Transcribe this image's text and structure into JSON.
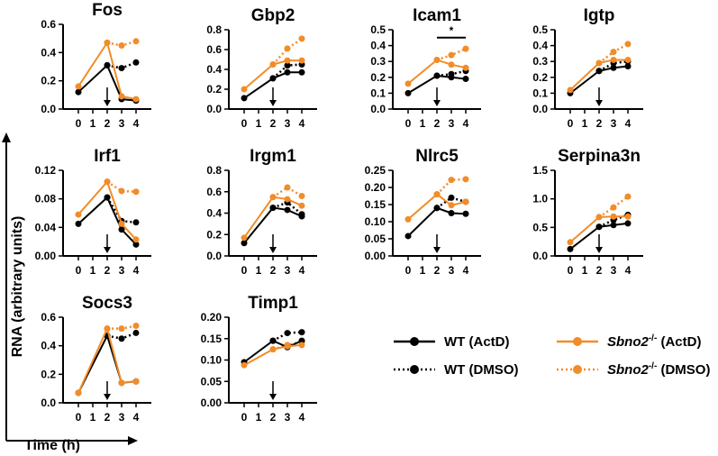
{
  "colors": {
    "wt": "#000000",
    "sbno2": "#F28C28"
  },
  "axis_labels": {
    "y": "RNA (arbitrary units)",
    "x": "Time (h)"
  },
  "legend": [
    {
      "text": "WT (ActD)",
      "style": "solid",
      "series": "wt"
    },
    {
      "italic": "Sbno2",
      "sup": "-/-",
      "text": " (ActD)",
      "style": "solid",
      "series": "sbno2"
    },
    {
      "text": "WT (DMSO)",
      "style": "dotted",
      "series": "wt"
    },
    {
      "italic": "Sbno2",
      "sup": "-/-",
      "text": " (DMSO)",
      "style": "dotted",
      "series": "sbno2"
    }
  ],
  "chart_data": [
    {
      "type": "line",
      "title": "Fos",
      "xlabel": "",
      "ylabel": "RNA (arbitrary units)",
      "x": [
        0,
        1,
        2,
        3,
        4
      ],
      "xticks": [
        "0",
        "1",
        "2",
        "3",
        "4"
      ],
      "ylim": [
        0,
        0.6
      ],
      "yticks": [
        "0.0",
        "0.2",
        "0.4",
        "0.6"
      ],
      "arrow_at": 2,
      "series": [
        {
          "name": "WT (ActD)",
          "x": [
            0,
            2,
            3,
            4
          ],
          "values": [
            0.12,
            0.31,
            0.07,
            0.06
          ]
        },
        {
          "name": "Sbno2-/- (ActD)",
          "x": [
            0,
            2,
            3,
            4
          ],
          "values": [
            0.16,
            0.47,
            0.09,
            0.07
          ]
        },
        {
          "name": "WT (DMSO)",
          "x": [
            2,
            3,
            4
          ],
          "values": [
            0.31,
            0.29,
            0.33
          ]
        },
        {
          "name": "Sbno2-/- (DMSO)",
          "x": [
            2,
            3,
            4
          ],
          "values": [
            0.47,
            0.45,
            0.48
          ]
        }
      ]
    },
    {
      "type": "line",
      "title": "Gbp2",
      "xlabel": "",
      "ylabel": "",
      "x": [
        0,
        1,
        2,
        3,
        4
      ],
      "xticks": [
        "0",
        "1",
        "2",
        "3",
        "4"
      ],
      "ylim": [
        0,
        0.8
      ],
      "yticks": [
        "0.0",
        "0.2",
        "0.4",
        "0.6",
        "0.8"
      ],
      "arrow_at": 2,
      "series": [
        {
          "name": "WT (ActD)",
          "x": [
            0,
            2,
            3,
            4
          ],
          "values": [
            0.11,
            0.31,
            0.37,
            0.37
          ]
        },
        {
          "name": "Sbno2-/- (ActD)",
          "x": [
            0,
            2,
            3,
            4
          ],
          "values": [
            0.2,
            0.45,
            0.49,
            0.49
          ]
        },
        {
          "name": "WT (DMSO)",
          "x": [
            2,
            3,
            4
          ],
          "values": [
            0.31,
            0.44,
            0.45
          ]
        },
        {
          "name": "Sbno2-/- (DMSO)",
          "x": [
            2,
            3,
            4
          ],
          "values": [
            0.45,
            0.61,
            0.71
          ]
        }
      ]
    },
    {
      "type": "line",
      "title": "Icam1",
      "xlabel": "",
      "ylabel": "",
      "x": [
        0,
        1,
        2,
        3,
        4
      ],
      "xticks": [
        "0",
        "1",
        "2",
        "3",
        "4"
      ],
      "ylim": [
        0,
        0.5
      ],
      "yticks": [
        "0.0",
        "0.1",
        "0.2",
        "0.3",
        "0.4",
        "0.5"
      ],
      "arrow_at": 2,
      "significance": {
        "from": 2,
        "to": 4,
        "y": 0.45,
        "label": "*"
      },
      "series": [
        {
          "name": "WT (ActD)",
          "x": [
            0,
            2,
            3,
            4
          ],
          "values": [
            0.1,
            0.21,
            0.2,
            0.19
          ]
        },
        {
          "name": "Sbno2-/- (ActD)",
          "x": [
            0,
            2,
            3,
            4
          ],
          "values": [
            0.16,
            0.31,
            0.28,
            0.26
          ]
        },
        {
          "name": "WT (DMSO)",
          "x": [
            2,
            3,
            4
          ],
          "values": [
            0.21,
            0.22,
            0.24
          ]
        },
        {
          "name": "Sbno2-/- (DMSO)",
          "x": [
            2,
            3,
            4
          ],
          "values": [
            0.31,
            0.34,
            0.38
          ]
        }
      ]
    },
    {
      "type": "line",
      "title": "Igtp",
      "xlabel": "",
      "ylabel": "",
      "x": [
        0,
        1,
        2,
        3,
        4
      ],
      "xticks": [
        "0",
        "1",
        "2",
        "3",
        "4"
      ],
      "ylim": [
        0,
        0.5
      ],
      "yticks": [
        "0.0",
        "0.1",
        "0.2",
        "0.3",
        "0.4",
        "0.5"
      ],
      "arrow_at": 2,
      "series": [
        {
          "name": "WT (ActD)",
          "x": [
            0,
            2,
            3,
            4
          ],
          "values": [
            0.1,
            0.24,
            0.26,
            0.27
          ]
        },
        {
          "name": "Sbno2-/- (ActD)",
          "x": [
            0,
            2,
            3,
            4
          ],
          "values": [
            0.12,
            0.29,
            0.31,
            0.31
          ]
        },
        {
          "name": "WT (DMSO)",
          "x": [
            2,
            3,
            4
          ],
          "values": [
            0.24,
            0.29,
            0.3
          ]
        },
        {
          "name": "Sbno2-/- (DMSO)",
          "x": [
            2,
            3,
            4
          ],
          "values": [
            0.29,
            0.36,
            0.41
          ]
        }
      ]
    },
    {
      "type": "line",
      "title": "Irf1",
      "xlabel": "",
      "ylabel": "",
      "x": [
        0,
        1,
        2,
        3,
        4
      ],
      "xticks": [
        "0",
        "1",
        "2",
        "3",
        "4"
      ],
      "ylim": [
        0,
        0.12
      ],
      "yticks": [
        "0.00",
        "0.04",
        "0.08",
        "0.12"
      ],
      "arrow_at": 2,
      "series": [
        {
          "name": "WT (ActD)",
          "x": [
            0,
            2,
            3,
            4
          ],
          "values": [
            0.045,
            0.082,
            0.037,
            0.016
          ]
        },
        {
          "name": "Sbno2-/- (ActD)",
          "x": [
            0,
            2,
            3,
            4
          ],
          "values": [
            0.058,
            0.104,
            0.045,
            0.023
          ]
        },
        {
          "name": "WT (DMSO)",
          "x": [
            2,
            3,
            4
          ],
          "values": [
            0.082,
            0.049,
            0.047
          ]
        },
        {
          "name": "Sbno2-/- (DMSO)",
          "x": [
            2,
            3,
            4
          ],
          "values": [
            0.104,
            0.091,
            0.09
          ]
        }
      ]
    },
    {
      "type": "line",
      "title": "Irgm1",
      "xlabel": "",
      "ylabel": "",
      "x": [
        0,
        1,
        2,
        3,
        4
      ],
      "xticks": [
        "0",
        "1",
        "2",
        "3",
        "4"
      ],
      "ylim": [
        0,
        0.8
      ],
      "yticks": [
        "0.0",
        "0.2",
        "0.4",
        "0.6",
        "0.8"
      ],
      "arrow_at": 2,
      "series": [
        {
          "name": "WT (ActD)",
          "x": [
            0,
            2,
            3,
            4
          ],
          "values": [
            0.12,
            0.45,
            0.43,
            0.37
          ]
        },
        {
          "name": "Sbno2-/- (ActD)",
          "x": [
            0,
            2,
            3,
            4
          ],
          "values": [
            0.17,
            0.55,
            0.53,
            0.47
          ]
        },
        {
          "name": "WT (DMSO)",
          "x": [
            2,
            3,
            4
          ],
          "values": [
            0.45,
            0.5,
            0.39
          ]
        },
        {
          "name": "Sbno2-/- (DMSO)",
          "x": [
            2,
            3,
            4
          ],
          "values": [
            0.55,
            0.64,
            0.56
          ]
        }
      ]
    },
    {
      "type": "line",
      "title": "Nlrc5",
      "xlabel": "",
      "ylabel": "",
      "x": [
        0,
        1,
        2,
        3,
        4
      ],
      "xticks": [
        "0",
        "1",
        "2",
        "3",
        "4"
      ],
      "ylim": [
        0,
        0.25
      ],
      "yticks": [
        "0.00",
        "0.05",
        "0.10",
        "0.15",
        "0.20",
        "0.25"
      ],
      "arrow_at": 2,
      "series": [
        {
          "name": "WT (ActD)",
          "x": [
            0,
            2,
            3,
            4
          ],
          "values": [
            0.058,
            0.14,
            0.125,
            0.123
          ]
        },
        {
          "name": "Sbno2-/- (ActD)",
          "x": [
            0,
            2,
            3,
            4
          ],
          "values": [
            0.107,
            0.18,
            0.148,
            0.158
          ]
        },
        {
          "name": "WT (DMSO)",
          "x": [
            2,
            3,
            4
          ],
          "values": [
            0.14,
            0.17,
            0.158
          ]
        },
        {
          "name": "Sbno2-/- (DMSO)",
          "x": [
            2,
            3,
            4
          ],
          "values": [
            0.18,
            0.222,
            0.224
          ]
        }
      ]
    },
    {
      "type": "line",
      "title": "Serpina3n",
      "xlabel": "",
      "ylabel": "",
      "x": [
        0,
        1,
        2,
        3,
        4
      ],
      "xticks": [
        "0",
        "1",
        "2",
        "3",
        "4"
      ],
      "ylim": [
        0,
        1.5
      ],
      "yticks": [
        "0.0",
        "0.5",
        "1.0",
        "1.5"
      ],
      "arrow_at": 2,
      "series": [
        {
          "name": "WT (ActD)",
          "x": [
            0,
            2,
            3,
            4
          ],
          "values": [
            0.12,
            0.51,
            0.54,
            0.57
          ]
        },
        {
          "name": "Sbno2-/- (ActD)",
          "x": [
            0,
            2,
            3,
            4
          ],
          "values": [
            0.24,
            0.68,
            0.69,
            0.69
          ]
        },
        {
          "name": "WT (DMSO)",
          "x": [
            2,
            3,
            4
          ],
          "values": [
            0.51,
            0.63,
            0.72
          ]
        },
        {
          "name": "Sbno2-/- (DMSO)",
          "x": [
            2,
            3,
            4
          ],
          "values": [
            0.68,
            0.85,
            1.04
          ]
        }
      ]
    },
    {
      "type": "line",
      "title": "Socs3",
      "xlabel": "",
      "ylabel": "",
      "x": [
        0,
        1,
        2,
        3,
        4
      ],
      "xticks": [
        "0",
        "1",
        "2",
        "3",
        "4"
      ],
      "ylim": [
        0,
        0.6
      ],
      "yticks": [
        "0.0",
        "0.2",
        "0.4",
        "0.6"
      ],
      "arrow_at": 2,
      "series": [
        {
          "name": "WT (ActD)",
          "x": [
            0,
            2,
            3,
            4
          ],
          "values": [
            0.07,
            0.47,
            0.14,
            0.15
          ]
        },
        {
          "name": "Sbno2-/- (ActD)",
          "x": [
            0,
            2,
            3,
            4
          ],
          "values": [
            0.07,
            0.52,
            0.14,
            0.15
          ]
        },
        {
          "name": "WT (DMSO)",
          "x": [
            2,
            3,
            4
          ],
          "values": [
            0.47,
            0.45,
            0.49
          ]
        },
        {
          "name": "Sbno2-/- (DMSO)",
          "x": [
            2,
            3,
            4
          ],
          "values": [
            0.52,
            0.52,
            0.54
          ]
        }
      ]
    },
    {
      "type": "line",
      "title": "Timp1",
      "xlabel": "",
      "ylabel": "",
      "x": [
        0,
        1,
        2,
        3,
        4
      ],
      "xticks": [
        "0",
        "1",
        "2",
        "3",
        "4"
      ],
      "ylim": [
        0,
        0.2
      ],
      "yticks": [
        "0.00",
        "0.05",
        "0.10",
        "0.15",
        "0.20"
      ],
      "arrow_at": 2,
      "series": [
        {
          "name": "WT (ActD)",
          "x": [
            0,
            2,
            3,
            4
          ],
          "values": [
            0.095,
            0.145,
            0.13,
            0.145
          ]
        },
        {
          "name": "Sbno2-/- (ActD)",
          "x": [
            0,
            2,
            3,
            4
          ],
          "values": [
            0.088,
            0.125,
            0.132,
            0.135
          ]
        },
        {
          "name": "WT (DMSO)",
          "x": [
            2,
            3,
            4
          ],
          "values": [
            0.145,
            0.163,
            0.165
          ]
        },
        {
          "name": "Sbno2-/- (DMSO)",
          "x": [
            2,
            3,
            4
          ],
          "values": [
            0.125,
            0.135,
            0.143
          ]
        }
      ]
    }
  ]
}
